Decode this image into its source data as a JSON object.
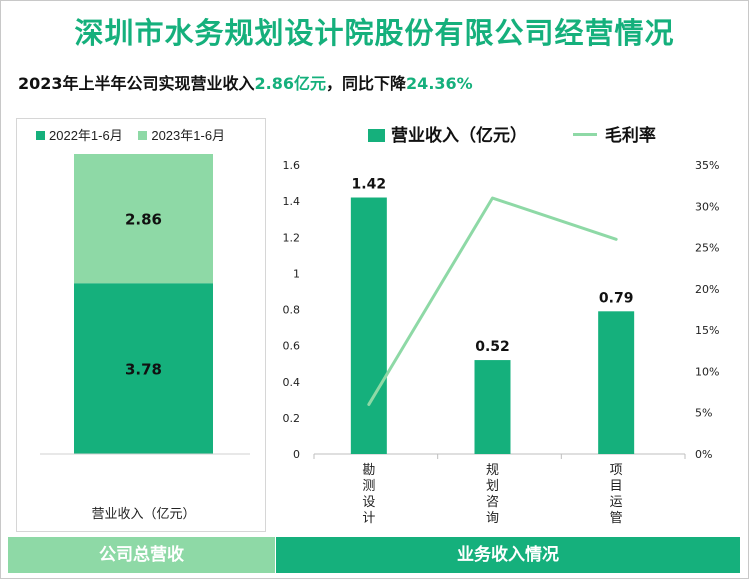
{
  "title": "深圳市水务规划设计院股份有限公司经营情况",
  "subtitle": {
    "prefix": "2023年上半年公司实现营业收入",
    "revenue": "2.86亿元",
    "middle": "，同比下降",
    "decline": "24.36%"
  },
  "colors": {
    "dark_green": "#15b07c",
    "light_green": "#8ed9a6"
  },
  "chart_data": [
    {
      "type": "bar",
      "stacked": true,
      "categories": [
        "营业收入（亿元）"
      ],
      "series": [
        {
          "name": "2022年1-6月",
          "values": [
            3.78
          ],
          "color": "#15b07c"
        },
        {
          "name": "2023年1-6月",
          "values": [
            2.86
          ],
          "color": "#8ed9a6"
        }
      ],
      "data_labels": [
        "3.78",
        "2.86"
      ],
      "legend": "top",
      "grid": false
    },
    {
      "type": "bar",
      "categories": [
        "勘测设计",
        "规划咨询",
        "项目运管"
      ],
      "series": [
        {
          "name": "营业收入（亿元）",
          "type": "bar",
          "axis": "left",
          "values": [
            1.42,
            0.52,
            0.79
          ],
          "color": "#15b07c"
        },
        {
          "name": "毛利率",
          "type": "line",
          "axis": "right",
          "values": [
            6,
            31,
            26
          ],
          "color": "#8ed9a6"
        }
      ],
      "data_labels": [
        "1.42",
        "0.52",
        "0.79"
      ],
      "y_left": {
        "ylim": [
          0,
          1.6
        ],
        "ticks": [
          "0",
          "0.2",
          "0.4",
          "0.6",
          "0.8",
          "1",
          "1.2",
          "1.4",
          "1.6"
        ]
      },
      "y_right": {
        "ylim": [
          0,
          35
        ],
        "ticks": [
          "0%",
          "5%",
          "10%",
          "15%",
          "20%",
          "25%",
          "30%",
          "35%"
        ]
      },
      "legend": "top",
      "grid": false
    }
  ],
  "footer": {
    "left": "公司总营收",
    "right": "业务收入情况"
  }
}
